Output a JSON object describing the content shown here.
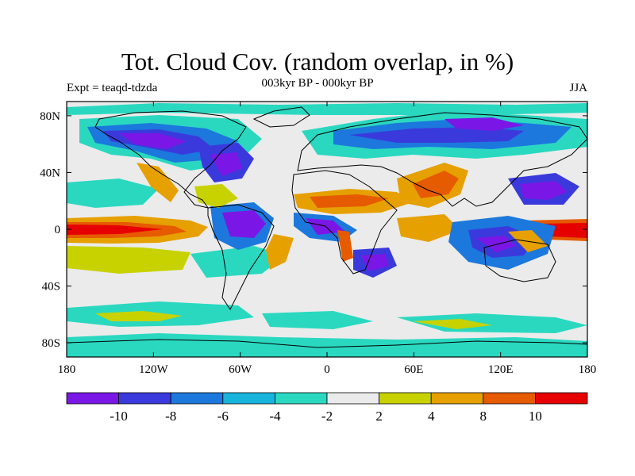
{
  "title": "Tot. Cloud Cov. (random overlap, in %)",
  "subtitle": "003kyr BP - 000kyr BP",
  "left_label": "Expt = teaqd-tdzda",
  "right_label": "JJA",
  "axes": {
    "x_ticks": [
      {
        "value": -180,
        "label": "180"
      },
      {
        "value": -120,
        "label": "120W"
      },
      {
        "value": -60,
        "label": "60W"
      },
      {
        "value": 0,
        "label": "0"
      },
      {
        "value": 60,
        "label": "60E"
      },
      {
        "value": 120,
        "label": "120E"
      },
      {
        "value": 180,
        "label": "180"
      }
    ],
    "y_ticks": [
      {
        "value": 80,
        "label": "80N"
      },
      {
        "value": 40,
        "label": "40N"
      },
      {
        "value": 0,
        "label": "0"
      },
      {
        "value": -40,
        "label": "40S"
      },
      {
        "value": -80,
        "label": "80S"
      }
    ],
    "lon_range": [
      -180,
      180
    ],
    "lat_range": [
      -90,
      90
    ]
  },
  "colorbar": {
    "labels": [
      "-10",
      "-8",
      "-6",
      "-4",
      "-2",
      "2",
      "4",
      "8",
      "10"
    ],
    "colors": [
      "#7a17e6",
      "#3a3adc",
      "#1c78dc",
      "#18b4dc",
      "#2ad8c0",
      "#ebebeb",
      "#c8d200",
      "#e6a000",
      "#e65a00",
      "#e60000"
    ]
  },
  "chart_data": {
    "type": "heatmap",
    "title": "Tot. Cloud Cov. (random overlap, in %)",
    "subtitle": "003kyr BP - 000kyr BP",
    "xlabel": "",
    "ylabel": "",
    "xlim": [
      -180,
      180
    ],
    "ylim": [
      -90,
      90
    ],
    "levels": [
      -10,
      -8,
      -6,
      -4,
      -2,
      2,
      4,
      8,
      10
    ],
    "features": [
      {
        "name": "equatorial east pacific increase",
        "lon": [
          -180,
          -110
        ],
        "lat": [
          -8,
          8
        ],
        "level": 10
      },
      {
        "name": "west pacific increase",
        "lon": [
          140,
          180
        ],
        "lat": [
          -5,
          8
        ],
        "level": 10
      },
      {
        "name": "sahel increase",
        "lon": [
          -10,
          40
        ],
        "lat": [
          10,
          22
        ],
        "level": 8
      },
      {
        "name": "arabia increase",
        "lon": [
          40,
          70
        ],
        "lat": [
          15,
          30
        ],
        "level": 8
      },
      {
        "name": "north america decrease",
        "lon": [
          -130,
          -60
        ],
        "lat": [
          50,
          70
        ],
        "level": -10
      },
      {
        "name": "eurasia decrease",
        "lon": [
          0,
          140
        ],
        "lat": [
          55,
          75
        ],
        "level": -8
      },
      {
        "name": "amazon decrease",
        "lon": [
          -70,
          -45
        ],
        "lat": [
          -15,
          5
        ],
        "level": -10
      },
      {
        "name": "west pacific warm pool decrease",
        "lon": [
          110,
          160
        ],
        "lat": [
          -25,
          -5
        ],
        "level": -8
      },
      {
        "name": "south africa decrease",
        "lon": [
          15,
          40
        ],
        "lat": [
          -30,
          -15
        ],
        "level": -10
      }
    ]
  }
}
